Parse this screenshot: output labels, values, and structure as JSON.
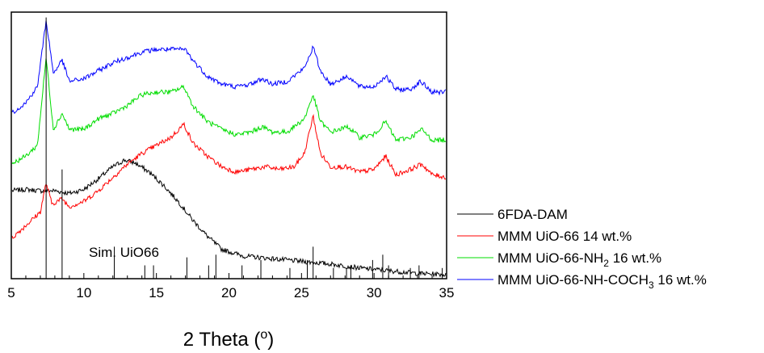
{
  "chart_data": {
    "type": "line",
    "title": "",
    "xlabel": {
      "main": "2 Theta (",
      "sup": "o",
      "tail": ")"
    },
    "ylabel": "",
    "xlim": [
      5,
      35
    ],
    "ylim": [
      0,
      1
    ],
    "x_ticks": [
      "5",
      "10",
      "15",
      "20",
      "25",
      "30",
      "35"
    ],
    "annotation": "Sim. UiO66",
    "legend": {
      "position": "right"
    },
    "series": [
      {
        "name": "6FDA-DAM",
        "legend": {
          "main": "6FDA-DAM",
          "sub": "",
          "tail": ""
        },
        "color": "#000000",
        "x": [
          5,
          6,
          7,
          8,
          9,
          10,
          11,
          12,
          12.8,
          13.5,
          14.5,
          15.5,
          16.5,
          17.5,
          18.5,
          19.5,
          21,
          23,
          25,
          27,
          29,
          31,
          33,
          35
        ],
        "y": [
          0.33,
          0.335,
          0.33,
          0.33,
          0.32,
          0.335,
          0.375,
          0.42,
          0.445,
          0.435,
          0.4,
          0.35,
          0.29,
          0.22,
          0.16,
          0.11,
          0.085,
          0.075,
          0.065,
          0.055,
          0.04,
          0.03,
          0.02,
          0.015
        ]
      },
      {
        "name": "MMM UiO-66 14 wt.%",
        "legend": {
          "main": "MMM UiO-66 14 wt.%",
          "sub": "",
          "tail": ""
        },
        "color": "#ff0000",
        "x": [
          5,
          6,
          7,
          7.4,
          7.8,
          8.5,
          9,
          10,
          11,
          12,
          13,
          14,
          15,
          16,
          16.9,
          17.5,
          18.5,
          19.5,
          20.5,
          21.5,
          22.5,
          23.5,
          24.5,
          25.2,
          25.8,
          26.3,
          27,
          28,
          29,
          30,
          30.8,
          31.5,
          32.5,
          33.3,
          34,
          35
        ],
        "y": [
          0.15,
          0.2,
          0.25,
          0.36,
          0.28,
          0.3,
          0.27,
          0.29,
          0.33,
          0.38,
          0.43,
          0.47,
          0.5,
          0.53,
          0.58,
          0.51,
          0.46,
          0.42,
          0.4,
          0.41,
          0.42,
          0.41,
          0.42,
          0.47,
          0.61,
          0.47,
          0.42,
          0.42,
          0.4,
          0.41,
          0.46,
          0.39,
          0.41,
          0.43,
          0.39,
          0.38
        ]
      },
      {
        "name": "MMM UiO-66-NH2 16 wt.%",
        "legend": {
          "main": "MMM UiO-66-NH",
          "sub": "2",
          "tail": " 16 wt.%"
        },
        "color": "#00dd00",
        "x": [
          5,
          6,
          6.8,
          7.4,
          7.9,
          8.5,
          9,
          10,
          11,
          12,
          13,
          14,
          15,
          16,
          16.9,
          17.5,
          18.5,
          19.5,
          20.5,
          21.5,
          22.3,
          23,
          24,
          25.2,
          25.8,
          26.3,
          27,
          28.2,
          29,
          30,
          30.8,
          31.5,
          32.5,
          33.3,
          34,
          35
        ],
        "y": [
          0.43,
          0.46,
          0.5,
          0.83,
          0.56,
          0.62,
          0.56,
          0.56,
          0.6,
          0.62,
          0.65,
          0.69,
          0.7,
          0.7,
          0.72,
          0.65,
          0.59,
          0.56,
          0.54,
          0.55,
          0.57,
          0.55,
          0.55,
          0.6,
          0.69,
          0.59,
          0.55,
          0.57,
          0.53,
          0.54,
          0.59,
          0.52,
          0.53,
          0.56,
          0.52,
          0.52
        ]
      },
      {
        "name": "MMM UiO-66-NH-COCH3 16 wt.%",
        "legend": {
          "main": "MMM UiO-66-NH-COCH",
          "sub": "3",
          "tail": " 16 wt.%"
        },
        "color": "#0000ff",
        "x": [
          5,
          6,
          6.8,
          7.4,
          7.9,
          8.5,
          9,
          10,
          11,
          12,
          13,
          14,
          15,
          16,
          17,
          17.5,
          18.5,
          19.5,
          20.5,
          21.5,
          22.3,
          23,
          24,
          25.2,
          25.8,
          26.3,
          27,
          28.2,
          29,
          30,
          30.8,
          31.5,
          32.5,
          33.2,
          34,
          35
        ],
        "y": [
          0.62,
          0.66,
          0.72,
          0.97,
          0.77,
          0.82,
          0.74,
          0.75,
          0.78,
          0.81,
          0.83,
          0.85,
          0.86,
          0.86,
          0.86,
          0.82,
          0.76,
          0.73,
          0.72,
          0.73,
          0.75,
          0.73,
          0.74,
          0.79,
          0.87,
          0.78,
          0.73,
          0.76,
          0.72,
          0.72,
          0.76,
          0.71,
          0.71,
          0.74,
          0.7,
          0.7
        ]
      }
    ],
    "simulated_peaks": {
      "name": "Sim. UiO66",
      "x": [
        7.4,
        8.5,
        12.1,
        14.2,
        14.8,
        17.1,
        18.6,
        19.1,
        20.9,
        22.2,
        24.2,
        25.4,
        25.8,
        27.2,
        28.1,
        28.4,
        29.9,
        30.6,
        31.0,
        32.5,
        33.1,
        34.7
      ],
      "height": [
        0.98,
        0.41,
        0.12,
        0.05,
        0.05,
        0.08,
        0.05,
        0.09,
        0.05,
        0.07,
        0.04,
        0.07,
        0.12,
        0.04,
        0.04,
        0.05,
        0.07,
        0.09,
        0.05,
        0.04,
        0.05,
        0.04
      ]
    }
  }
}
